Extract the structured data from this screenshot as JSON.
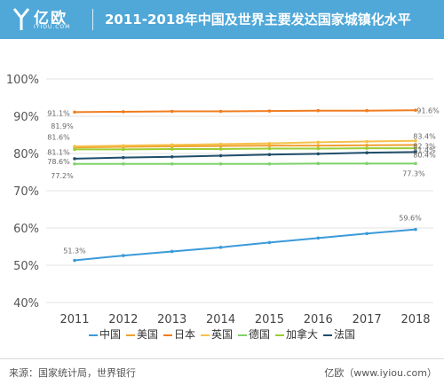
{
  "header": {
    "logo_text": "亿欧",
    "logo_sub": "IYIOU.COM",
    "title": "2011-2018年中国及世界主要发达国家城镇化水平"
  },
  "footer": {
    "source": "来源：国家统计局，世界银行",
    "credit": "亿欧（www.iyiou.com）"
  },
  "chart_data": {
    "type": "line",
    "x": [
      "2011",
      "2012",
      "2013",
      "2014",
      "2015",
      "2016",
      "2017",
      "2018"
    ],
    "ylim": [
      40,
      100
    ],
    "yticks": [
      "40%",
      "50%",
      "60%",
      "70%",
      "80%",
      "90%",
      "100%"
    ],
    "legend_position": "bottom",
    "grid": "horizontal",
    "series": [
      {
        "name": "中国",
        "color": "#3b9ad9",
        "values": [
          51.3,
          52.6,
          53.7,
          54.8,
          56.1,
          57.3,
          58.5,
          59.6
        ],
        "start_label": "51.3%",
        "end_label": "59.6%"
      },
      {
        "name": "美国",
        "color": "#f0a030",
        "values": [
          81.6,
          81.8,
          81.9,
          82.0,
          82.1,
          82.1,
          82.2,
          82.3
        ],
        "start_label": "81.6%",
        "end_label": "82.3%"
      },
      {
        "name": "日本",
        "color": "#f07c1e",
        "values": [
          91.1,
          91.2,
          91.3,
          91.3,
          91.4,
          91.5,
          91.5,
          91.6
        ],
        "start_label": "91.1%",
        "end_label": "91.6%"
      },
      {
        "name": "英国",
        "color": "#f5c14a",
        "values": [
          81.9,
          82.1,
          82.3,
          82.5,
          82.7,
          83.0,
          83.2,
          83.4
        ],
        "start_label": "81.9%",
        "end_label": "83.4%"
      },
      {
        "name": "德国",
        "color": "#7ed26a",
        "values": [
          77.2,
          77.2,
          77.2,
          77.2,
          77.2,
          77.3,
          77.3,
          77.3
        ],
        "start_label": "77.2%",
        "end_label": "77.3%"
      },
      {
        "name": "加拿大",
        "color": "#9acd32",
        "values": [
          81.1,
          81.1,
          81.2,
          81.2,
          81.3,
          81.3,
          81.4,
          81.4
        ],
        "start_label": "81.1%",
        "end_label": "81.4%"
      },
      {
        "name": "法国",
        "color": "#1f4e6b",
        "values": [
          78.6,
          78.9,
          79.1,
          79.4,
          79.7,
          79.9,
          80.2,
          80.4
        ],
        "start_label": "78.6%",
        "end_label": "80.4%"
      }
    ]
  }
}
